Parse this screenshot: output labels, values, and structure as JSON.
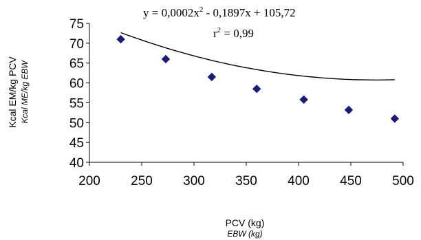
{
  "chart_data": {
    "type": "scatter",
    "series": [
      {
        "x": [
          230,
          273,
          317,
          360,
          405,
          448,
          492
        ],
        "y": [
          71,
          66,
          61.5,
          58.5,
          55.8,
          53.2,
          51
        ]
      }
    ],
    "trendline": {
      "type": "polynomial",
      "equation_prefix": "y = 0,0002x",
      "equation_suffix": " - 0,1897x + 105,72",
      "equation_exponent": "2",
      "r2_prefix": "r",
      "r2_exponent": "2",
      "r2_suffix": " = 0,99",
      "coefficients": {
        "a": 0.0002,
        "b": -0.1897,
        "c": 105.72
      }
    },
    "xlabel": "PCV (kg)",
    "xlabel_sub": "EBW (kg)",
    "ylabel": "Kcal EM/kg PCV",
    "ylabel_sub": "Kcal ME/kg EBW",
    "xlim": [
      200,
      500
    ],
    "ylim": [
      40,
      75
    ],
    "xticks": [
      "200",
      "250",
      "300",
      "350",
      "400",
      "450",
      "500"
    ],
    "yticks": [
      "40",
      "45",
      "50",
      "55",
      "60",
      "65",
      "70",
      "75"
    ],
    "xtick_values": [
      200,
      250,
      300,
      350,
      400,
      450,
      500
    ],
    "ytick_values": [
      40,
      45,
      50,
      55,
      60,
      65,
      70,
      75
    ],
    "grid": false,
    "marker_color": "#1b1b7a",
    "line_color": "#000000"
  }
}
